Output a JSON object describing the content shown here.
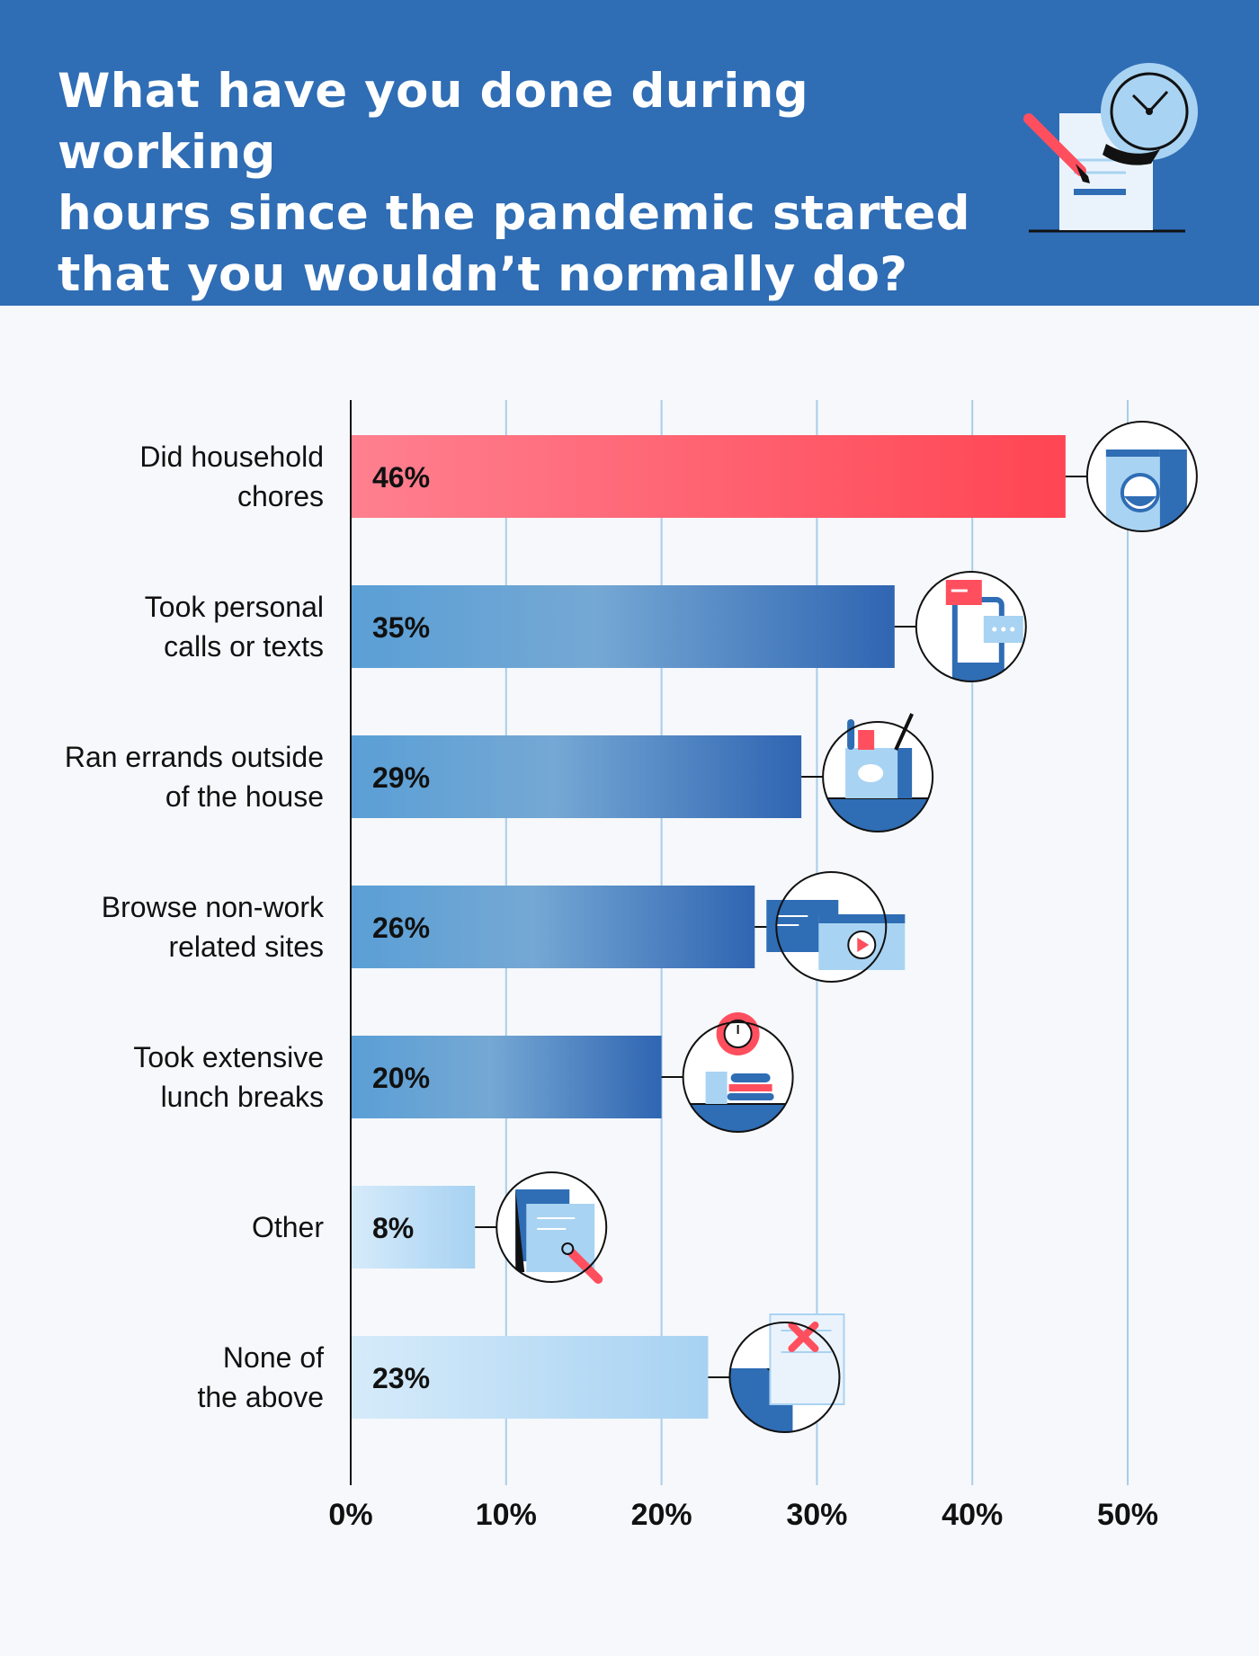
{
  "title": {
    "line1": "What have you done during working",
    "line2": "hours since the pandemic started",
    "line3": "that you wouldn’t normally do?"
  },
  "colors": {
    "header_bg": "#2f6db5",
    "highlight_bar": "#ff4f5e",
    "dark_blue_bar": "#3167b2",
    "light_blue_bar": "#a9d3f2",
    "grid": "#a8cdeb",
    "background": "#f6f8fb"
  },
  "chart_data": {
    "type": "bar",
    "orientation": "horizontal",
    "categories": [
      [
        "Did household",
        "chores"
      ],
      [
        "Took personal",
        "calls or texts"
      ],
      [
        "Ran errands outside",
        "of the house"
      ],
      [
        "Browse non-work",
        "related sites"
      ],
      [
        "Took extensive",
        "lunch breaks"
      ],
      [
        "Other"
      ],
      [
        "None of",
        "the above"
      ]
    ],
    "values": [
      46,
      35,
      29,
      26,
      20,
      8,
      23
    ],
    "value_labels": [
      "46%",
      "35%",
      "29%",
      "26%",
      "20%",
      "8%",
      "23%"
    ],
    "bar_styles": [
      "highlight",
      "dark",
      "dark",
      "dark",
      "dark",
      "light",
      "light"
    ],
    "icons": [
      "washing-machine-icon",
      "phone-messages-icon",
      "grocery-bag-icon",
      "browser-windows-icon",
      "lunch-clock-icon",
      "document-search-icon",
      "document-cross-icon"
    ],
    "xlim": [
      0,
      50
    ],
    "xticks": [
      0,
      10,
      20,
      30,
      40,
      50
    ],
    "xtick_labels": [
      "0%",
      "10%",
      "20%",
      "30%",
      "40%",
      "50%"
    ],
    "grid": true
  }
}
